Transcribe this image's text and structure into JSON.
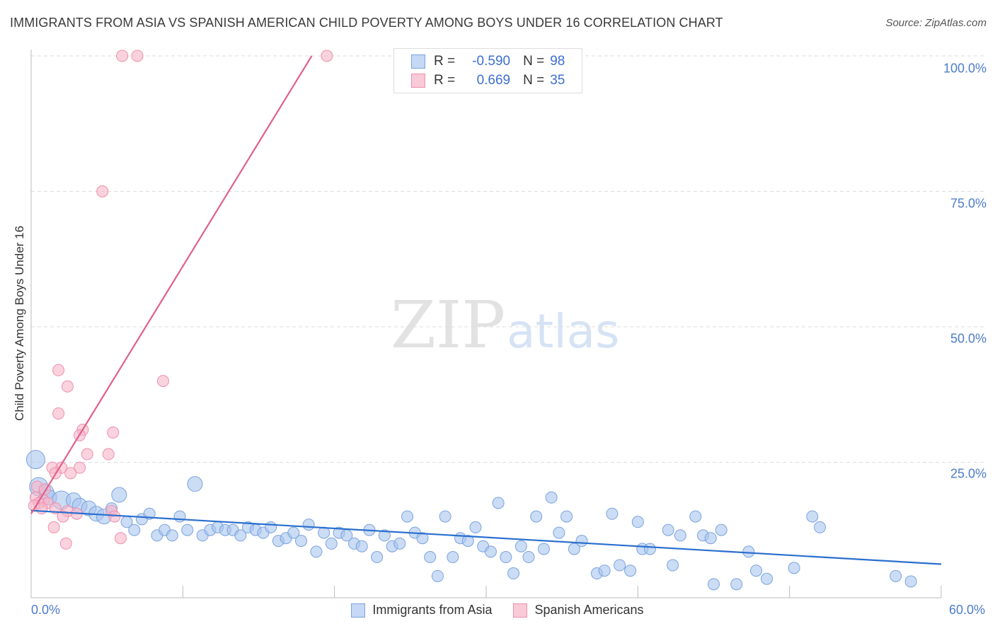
{
  "title": "IMMIGRANTS FROM ASIA VS SPANISH AMERICAN CHILD POVERTY AMONG BOYS UNDER 16 CORRELATION CHART",
  "source": "Source: ZipAtlas.com",
  "watermark": {
    "zip": "ZIP",
    "atlas": "atlas"
  },
  "legend": {
    "rows": [
      {
        "r_label": "R =",
        "r_value": "-0.590",
        "n_label": "N =",
        "n_value": "98"
      },
      {
        "r_label": "R =",
        "r_value": "0.669",
        "n_label": "N =",
        "n_value": "35"
      }
    ]
  },
  "colors": {
    "asia_fill": "#a9c5ef",
    "asia_stroke": "#7aa3de",
    "asia_line": "#2b6fcf",
    "spanish_fill": "#f6b6c9",
    "spanish_stroke": "#ee8fab",
    "spanish_line": "#e0608b",
    "grid": "#dddddd",
    "axis_text": "#4d7cc9"
  },
  "chart_data": {
    "type": "scatter",
    "title": "IMMIGRANTS FROM ASIA VS SPANISH AMERICAN CHILD POVERTY AMONG BOYS UNDER 16 CORRELATION CHART",
    "xlabel": "",
    "ylabel": "Child Poverty Among Boys Under 16",
    "xlim": [
      0,
      60
    ],
    "ylim": [
      0,
      100
    ],
    "x_tick_labels": [
      "0.0%",
      "60.0%"
    ],
    "y_tick_labels": [
      "100.0%",
      "75.0%",
      "50.0%",
      "25.0%"
    ],
    "y_ticks": [
      100,
      75,
      50,
      25
    ],
    "grid": true,
    "legend_position": "bottom",
    "series": [
      {
        "name": "Immigrants from Asia",
        "r": -0.59,
        "n": 98,
        "trend": {
          "x": [
            0,
            60
          ],
          "y": [
            16.1,
            6.2
          ]
        },
        "points": [
          [
            0.3,
            25.5,
            3
          ],
          [
            0.5,
            20.5,
            3
          ],
          [
            1.0,
            19.5,
            2
          ],
          [
            1.2,
            18.5,
            2
          ],
          [
            2.0,
            18.0,
            3
          ],
          [
            2.8,
            18.0,
            2
          ],
          [
            3.2,
            17.0,
            2
          ],
          [
            3.8,
            16.5,
            2
          ],
          [
            4.3,
            15.5,
            2
          ],
          [
            4.8,
            15.0,
            2
          ],
          [
            5.3,
            16.5,
            1
          ],
          [
            5.8,
            19.0,
            2
          ],
          [
            6.3,
            14.0,
            1
          ],
          [
            6.8,
            12.5,
            1
          ],
          [
            7.3,
            14.5,
            1
          ],
          [
            7.8,
            15.5,
            1
          ],
          [
            8.3,
            11.5,
            1
          ],
          [
            8.8,
            12.5,
            1
          ],
          [
            9.3,
            11.5,
            1
          ],
          [
            9.8,
            15.0,
            1
          ],
          [
            10.3,
            12.5,
            1
          ],
          [
            10.8,
            21.0,
            2
          ],
          [
            11.3,
            11.5,
            1
          ],
          [
            11.8,
            12.5,
            1
          ],
          [
            12.3,
            13.0,
            1
          ],
          [
            12.8,
            12.5,
            1
          ],
          [
            13.3,
            12.5,
            1
          ],
          [
            13.8,
            11.5,
            1
          ],
          [
            14.3,
            13.0,
            1
          ],
          [
            14.8,
            12.5,
            1
          ],
          [
            15.3,
            12.0,
            1
          ],
          [
            15.8,
            13.0,
            1
          ],
          [
            16.3,
            10.5,
            1
          ],
          [
            16.8,
            11.0,
            1
          ],
          [
            17.3,
            12.0,
            1
          ],
          [
            17.8,
            10.5,
            1
          ],
          [
            18.3,
            13.5,
            1
          ],
          [
            18.8,
            8.5,
            1
          ],
          [
            19.3,
            12.0,
            1
          ],
          [
            19.8,
            10.0,
            1
          ],
          [
            20.3,
            12.0,
            1
          ],
          [
            20.8,
            11.5,
            1
          ],
          [
            21.3,
            10.0,
            1
          ],
          [
            21.8,
            9.5,
            1
          ],
          [
            22.3,
            12.5,
            1
          ],
          [
            22.8,
            7.5,
            1
          ],
          [
            23.3,
            11.5,
            1
          ],
          [
            23.8,
            9.5,
            1
          ],
          [
            24.3,
            10.0,
            1
          ],
          [
            24.8,
            15.0,
            1
          ],
          [
            25.3,
            12.0,
            1
          ],
          [
            25.8,
            11.0,
            1
          ],
          [
            26.3,
            7.5,
            1
          ],
          [
            26.8,
            4.0,
            1
          ],
          [
            27.3,
            15.0,
            1
          ],
          [
            27.8,
            7.5,
            1
          ],
          [
            28.3,
            11.0,
            1
          ],
          [
            28.8,
            10.5,
            1
          ],
          [
            29.3,
            13.0,
            1
          ],
          [
            29.8,
            9.5,
            1
          ],
          [
            30.3,
            8.5,
            1
          ],
          [
            30.8,
            17.5,
            1
          ],
          [
            31.3,
            7.5,
            1
          ],
          [
            31.8,
            4.5,
            1
          ],
          [
            32.3,
            9.5,
            1
          ],
          [
            32.8,
            7.5,
            1
          ],
          [
            33.3,
            15.0,
            1
          ],
          [
            33.8,
            9.0,
            1
          ],
          [
            34.3,
            18.5,
            1
          ],
          [
            34.8,
            12.0,
            1
          ],
          [
            35.3,
            15.0,
            1
          ],
          [
            35.8,
            9.0,
            1
          ],
          [
            36.3,
            10.5,
            1
          ],
          [
            37.3,
            4.5,
            1
          ],
          [
            37.8,
            5.0,
            1
          ],
          [
            38.3,
            15.5,
            1
          ],
          [
            38.8,
            6.0,
            1
          ],
          [
            39.5,
            5.0,
            1
          ],
          [
            40.0,
            14.0,
            1
          ],
          [
            40.3,
            9.0,
            1
          ],
          [
            40.8,
            9.0,
            1
          ],
          [
            42.0,
            12.5,
            1
          ],
          [
            42.3,
            6.0,
            1
          ],
          [
            42.8,
            11.5,
            1
          ],
          [
            43.8,
            15.0,
            1
          ],
          [
            44.3,
            11.5,
            1
          ],
          [
            44.8,
            11.0,
            1
          ],
          [
            45.0,
            2.5,
            1
          ],
          [
            45.5,
            12.5,
            1
          ],
          [
            46.5,
            2.5,
            1
          ],
          [
            47.3,
            8.5,
            1
          ],
          [
            47.8,
            5.0,
            1
          ],
          [
            48.5,
            3.5,
            1
          ],
          [
            50.3,
            5.5,
            1
          ],
          [
            51.5,
            15.0,
            1
          ],
          [
            52.0,
            13.0,
            1
          ],
          [
            57.0,
            4.0,
            1
          ],
          [
            58.0,
            3.0,
            1
          ]
        ]
      },
      {
        "name": "Spanish Americans",
        "r": 0.669,
        "n": 35,
        "trend": {
          "x": [
            0,
            18.5
          ],
          "y": [
            15.5,
            100
          ]
        },
        "points": [
          [
            6.0,
            100,
            1
          ],
          [
            7.0,
            100,
            1
          ],
          [
            19.5,
            100,
            1
          ],
          [
            4.7,
            75,
            1
          ],
          [
            1.8,
            42,
            1
          ],
          [
            2.4,
            39,
            1
          ],
          [
            8.7,
            40,
            1
          ],
          [
            1.8,
            34,
            1
          ],
          [
            3.4,
            31,
            1
          ],
          [
            3.2,
            30,
            1
          ],
          [
            5.4,
            30.5,
            1
          ],
          [
            3.7,
            26.5,
            1
          ],
          [
            5.1,
            26.5,
            1
          ],
          [
            1.4,
            24,
            1
          ],
          [
            2.0,
            24,
            1
          ],
          [
            3.2,
            24,
            1
          ],
          [
            1.6,
            23,
            1
          ],
          [
            2.6,
            23,
            1
          ],
          [
            0.4,
            20.5,
            1
          ],
          [
            0.9,
            20,
            1
          ],
          [
            0.3,
            18.5,
            1
          ],
          [
            0.8,
            18,
            1
          ],
          [
            1.1,
            17.5,
            1
          ],
          [
            0.5,
            17.5,
            1
          ],
          [
            0.2,
            17,
            1
          ],
          [
            0.7,
            16.5,
            1
          ],
          [
            1.6,
            16.5,
            1
          ],
          [
            2.4,
            16,
            1
          ],
          [
            3.0,
            15.5,
            1
          ],
          [
            5.3,
            16,
            1
          ],
          [
            5.5,
            15,
            1
          ],
          [
            2.1,
            15,
            1
          ],
          [
            1.5,
            13,
            1
          ],
          [
            5.9,
            11,
            1
          ],
          [
            2.3,
            10,
            1
          ]
        ]
      }
    ]
  }
}
